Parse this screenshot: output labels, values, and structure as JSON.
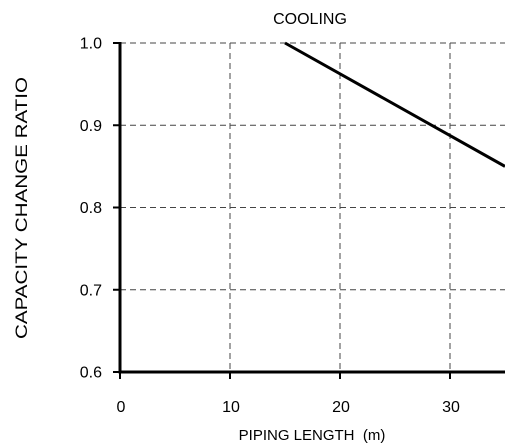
{
  "chart_data": {
    "type": "line",
    "title": "COOLING",
    "xlabel": "PIPING LENGTH  (m)",
    "ylabel": "CAPACITY CHANGE RATIO",
    "xlim": [
      0,
      35
    ],
    "ylim": [
      0.6,
      1.0
    ],
    "x_ticks": [
      {
        "value": 0,
        "label": "0"
      },
      {
        "value": 10,
        "label": "10"
      },
      {
        "value": 20,
        "label": "20"
      },
      {
        "value": 30,
        "label": "30"
      }
    ],
    "y_ticks": [
      {
        "value": 0.6,
        "label": "0.6"
      },
      {
        "value": 0.7,
        "label": "0.7"
      },
      {
        "value": 0.8,
        "label": "0.8"
      },
      {
        "value": 0.9,
        "label": "0.9"
      },
      {
        "value": 1.0,
        "label": "1.0"
      }
    ],
    "grid": true,
    "series": [
      {
        "color": "#000000",
        "x": [
          15,
          35
        ],
        "y": [
          1.0,
          0.85
        ]
      }
    ]
  }
}
